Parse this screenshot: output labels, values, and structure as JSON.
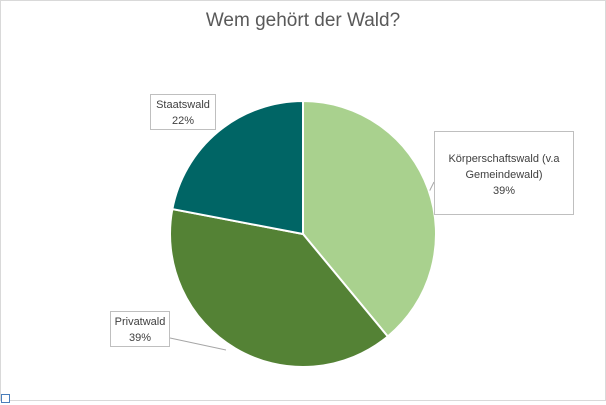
{
  "chart_data": {
    "type": "pie",
    "title": "Wem gehört der Wald?",
    "slices": [
      {
        "label": "Körperschaftswald (v.a Gemeindewald)",
        "label_lines": [
          "Körperschaftswald (v.a",
          "Gemeindewald)"
        ],
        "value": 39,
        "value_label": "39%",
        "color": "#a9d18e"
      },
      {
        "label": "Privatwald",
        "label_lines": [
          "Privatwald"
        ],
        "value": 39,
        "value_label": "39%",
        "color": "#548235"
      },
      {
        "label": "Staatswald",
        "label_lines": [
          "Staatswald"
        ],
        "value": 22,
        "value_label": "22%",
        "color": "#006565"
      }
    ],
    "start_angle_deg": 0,
    "direction": "clockwise",
    "legend": "none",
    "data_labels": "callouts"
  }
}
